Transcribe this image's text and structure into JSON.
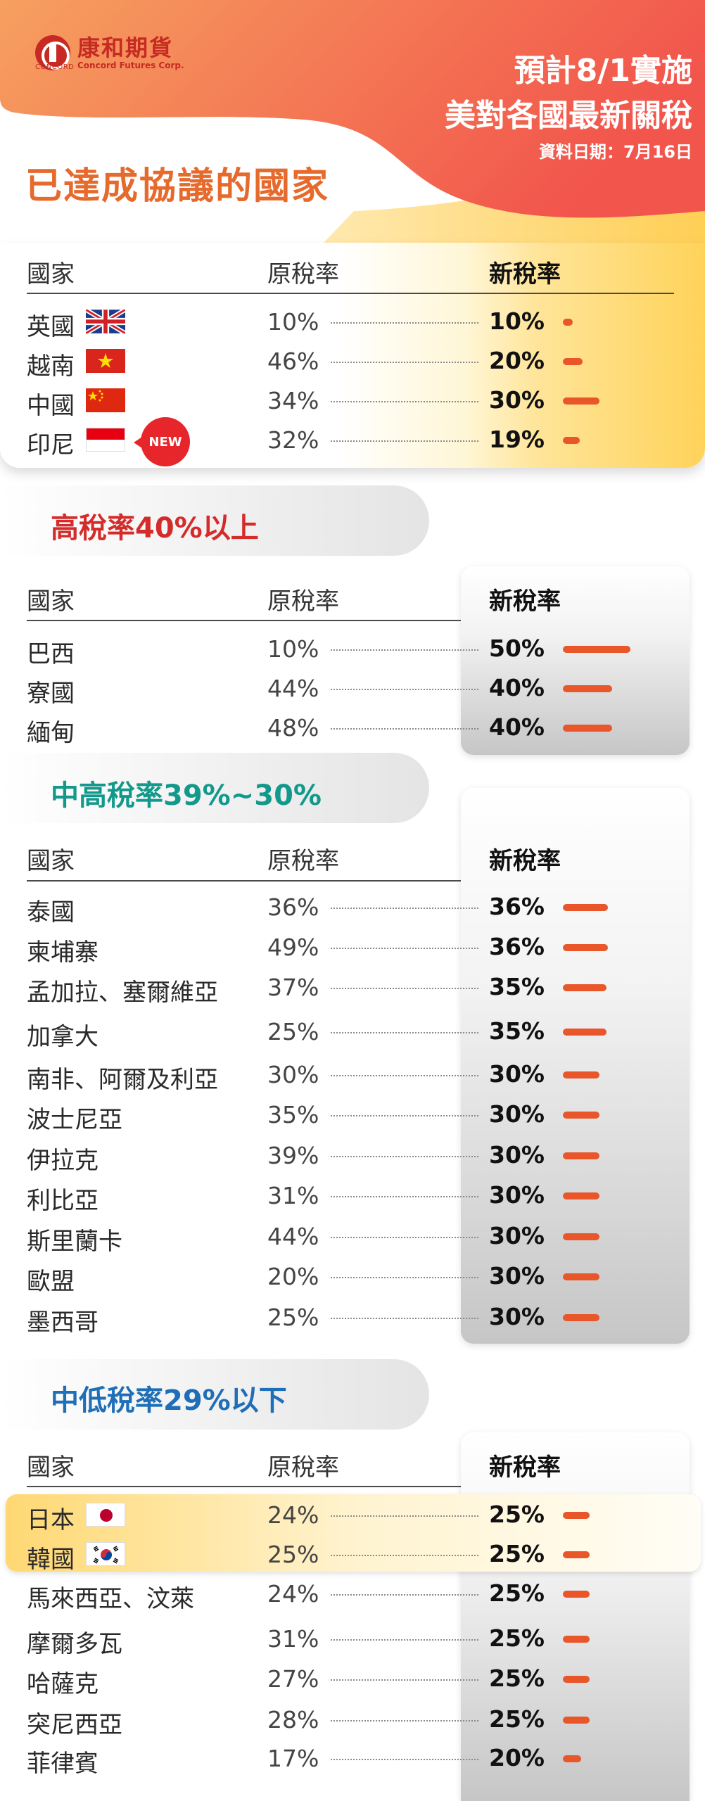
{
  "header": {
    "logo_cn": "康和期貨",
    "logo_en": "Concord Futures Corp.",
    "logo_small": "CONCORD",
    "title_line1": "預計8/1實施",
    "title_line2": "美對各國最新關稅",
    "date_label": "資料日期：7月16日"
  },
  "columns": {
    "country": "國家",
    "original": "原稅率",
    "new": "新稅率"
  },
  "agreed": {
    "title": "已達成協議的國家",
    "badge": "NEW",
    "rows": [
      {
        "name": "英國",
        "orig": "10%",
        "new": "10%",
        "flag": "uk-flag-icon"
      },
      {
        "name": "越南",
        "orig": "46%",
        "new": "20%",
        "flag": "vietnam-flag-icon"
      },
      {
        "name": "中國",
        "orig": "34%",
        "new": "30%",
        "flag": "china-flag-icon"
      },
      {
        "name": "印尼",
        "orig": "32%",
        "new": "19%",
        "flag": "indonesia-flag-icon"
      }
    ]
  },
  "high": {
    "title": "高稅率40%以上",
    "color": "#d42b2b",
    "rows": [
      {
        "name": "巴西",
        "orig": "10%",
        "new": "50%"
      },
      {
        "name": "寮國",
        "orig": "44%",
        "new": "40%"
      },
      {
        "name": "緬甸",
        "orig": "48%",
        "new": "40%"
      }
    ]
  },
  "midhigh": {
    "title": "中高稅率39%~30%",
    "color": "#12998c",
    "rows": [
      {
        "name": "泰國",
        "orig": "36%",
        "new": "36%"
      },
      {
        "name": "柬埔寨",
        "orig": "49%",
        "new": "36%"
      },
      {
        "name": "孟加拉、塞爾維亞",
        "orig": "37%",
        "new": "35%"
      },
      {
        "name": "加拿大",
        "orig": "25%",
        "new": "35%"
      },
      {
        "name": "南非、阿爾及利亞",
        "orig": "30%",
        "new": "30%"
      },
      {
        "name": "波士尼亞",
        "orig": "35%",
        "new": "30%"
      },
      {
        "name": "伊拉克",
        "orig": "39%",
        "new": "30%"
      },
      {
        "name": "利比亞",
        "orig": "31%",
        "new": "30%"
      },
      {
        "name": "斯里蘭卡",
        "orig": "44%",
        "new": "30%"
      },
      {
        "name": "歐盟",
        "orig": "20%",
        "new": "30%"
      },
      {
        "name": "墨西哥",
        "orig": "25%",
        "new": "30%"
      }
    ]
  },
  "midlow": {
    "title": "中低稅率29%以下",
    "color": "#1e6fb8",
    "rows": [
      {
        "name": "日本",
        "orig": "24%",
        "new": "25%",
        "flag": "japan-flag-icon"
      },
      {
        "name": "韓國",
        "orig": "25%",
        "new": "25%",
        "flag": "korea-flag-icon"
      },
      {
        "name": "馬來西亞、汶萊",
        "orig": "24%",
        "new": "25%"
      },
      {
        "name": "摩爾多瓦",
        "orig": "31%",
        "new": "25%"
      },
      {
        "name": "哈薩克",
        "orig": "27%",
        "new": "25%"
      },
      {
        "name": "突尼西亞",
        "orig": "28%",
        "new": "25%"
      },
      {
        "name": "菲律賓",
        "orig": "17%",
        "new": "20%"
      }
    ]
  },
  "colors": {
    "accent_orange": "#e66a2c",
    "bar": "#e8562a",
    "brand_red": "#c62a22"
  }
}
